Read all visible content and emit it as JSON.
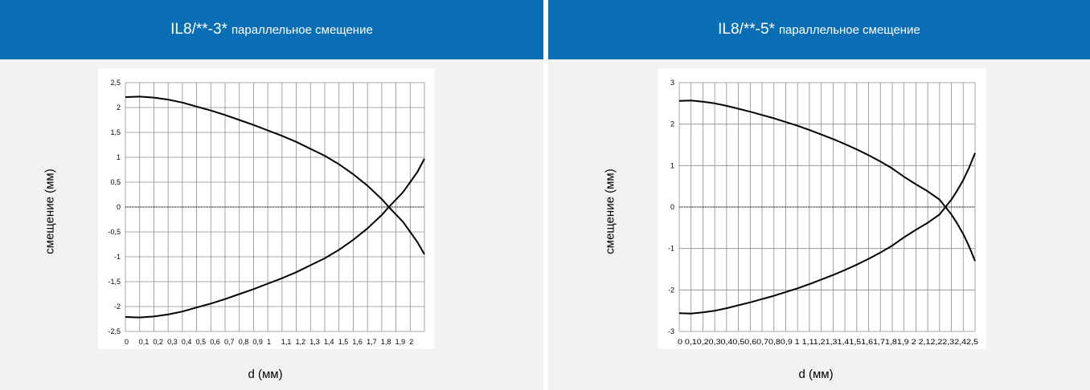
{
  "charts": [
    {
      "title_main": "IL8/**-3*",
      "title_sub": "параллельное смещение",
      "ylabel": "смещение (мм)",
      "xlabel": "d (мм)"
    },
    {
      "title_main": "IL8/**-5*",
      "title_sub": "параллельное смещение",
      "ylabel": "смещение (мм)",
      "xlabel": "d (мм)"
    }
  ],
  "chart_data": [
    {
      "type": "line",
      "title": "IL8/**-3* параллельное смещение",
      "xlabel": "d (мм)",
      "ylabel": "смещение (мм)",
      "xlim": [
        0,
        2.1
      ],
      "ylim": [
        -2.5,
        2.5
      ],
      "grid": true,
      "x_ticks": [
        "0",
        "0,1",
        "0,2",
        "0,3",
        "0,4",
        "0,5",
        "0,6",
        "0,7",
        "0,8",
        "0,9",
        "1",
        "1,1",
        "1,2",
        "1,3",
        "1,4",
        "1,5",
        "1,6",
        "1,7",
        "1,8",
        "1,9",
        "2"
      ],
      "y_ticks": [
        "2,5",
        "2",
        "1,5",
        "1",
        "0,5",
        "0",
        "-0,5",
        "-1",
        "-1,5",
        "-2",
        "-2,5"
      ],
      "y_tick_values": [
        2.5,
        2,
        1.5,
        1,
        0.5,
        0,
        -0.5,
        -1,
        -1.5,
        -2,
        -2.5
      ],
      "series": [
        {
          "x": [
            0,
            0.1,
            0.2,
            0.3,
            0.4,
            0.5,
            0.6,
            0.7,
            0.8,
            0.9,
            1.0,
            1.1,
            1.2,
            1.3,
            1.4,
            1.5,
            1.6,
            1.7,
            1.8,
            1.85,
            1.9,
            1.95,
            2.0,
            2.05,
            2.1
          ],
          "y": [
            2.21,
            2.22,
            2.2,
            2.16,
            2.1,
            2.02,
            1.94,
            1.85,
            1.75,
            1.65,
            1.54,
            1.43,
            1.31,
            1.17,
            1.03,
            0.86,
            0.66,
            0.43,
            0.16,
            0.0,
            -0.15,
            -0.3,
            -0.5,
            -0.7,
            -0.95
          ]
        },
        {
          "x": [
            0,
            0.1,
            0.2,
            0.3,
            0.4,
            0.5,
            0.6,
            0.7,
            0.8,
            0.9,
            1.0,
            1.1,
            1.2,
            1.3,
            1.4,
            1.5,
            1.6,
            1.7,
            1.8,
            1.85,
            1.9,
            1.95,
            2.0,
            2.05,
            2.1
          ],
          "y": [
            -2.21,
            -2.22,
            -2.2,
            -2.16,
            -2.1,
            -2.02,
            -1.94,
            -1.85,
            -1.75,
            -1.65,
            -1.54,
            -1.43,
            -1.31,
            -1.17,
            -1.03,
            -0.86,
            -0.66,
            -0.43,
            -0.16,
            0.0,
            0.15,
            0.3,
            0.5,
            0.7,
            0.97
          ]
        },
        {
          "x": [
            0,
            2.1
          ],
          "y": [
            0,
            0
          ],
          "dotted": true
        }
      ]
    },
    {
      "type": "line",
      "title": "IL8/**-5* параллельное смещение",
      "xlabel": "d (мм)",
      "ylabel": "смещение (мм)",
      "xlim": [
        0,
        2.5
      ],
      "ylim": [
        -3,
        3
      ],
      "grid": true,
      "x_ticks": [
        "0",
        "0,1",
        "0,2",
        "0,3",
        "0,4",
        "0,5",
        "0,6",
        "0,7",
        "0,8",
        "0,9",
        "1",
        "1,1",
        "1,2",
        "1,3",
        "1,4",
        "1,5",
        "1,6",
        "1,7",
        "1,8",
        "1,9",
        "2",
        "2,1",
        "2,2",
        "2,3",
        "2,4",
        "2,5"
      ],
      "x_tick_text": "0 0,10,20,30,40,50,60,70,80,9 1 1,11,21,31,41,51,61,71,81,9 2 2,12,22,32,42,5",
      "y_ticks": [
        "3",
        "2",
        "1",
        "0",
        "-1",
        "-2",
        "-3"
      ],
      "y_tick_values": [
        3,
        2,
        1,
        0,
        -1,
        -2,
        -3
      ],
      "series": [
        {
          "x": [
            0,
            0.1,
            0.2,
            0.3,
            0.4,
            0.5,
            0.6,
            0.7,
            0.8,
            0.9,
            1.0,
            1.1,
            1.2,
            1.3,
            1.4,
            1.5,
            1.6,
            1.7,
            1.8,
            1.9,
            2.0,
            2.1,
            2.2,
            2.25,
            2.3,
            2.35,
            2.4,
            2.45,
            2.5
          ],
          "y": [
            2.56,
            2.57,
            2.54,
            2.5,
            2.44,
            2.37,
            2.3,
            2.22,
            2.14,
            2.05,
            1.96,
            1.86,
            1.75,
            1.64,
            1.52,
            1.39,
            1.25,
            1.1,
            0.93,
            0.73,
            0.55,
            0.38,
            0.18,
            0.0,
            -0.18,
            -0.4,
            -0.65,
            -0.95,
            -1.3
          ]
        },
        {
          "x": [
            0,
            0.1,
            0.2,
            0.3,
            0.4,
            0.5,
            0.6,
            0.7,
            0.8,
            0.9,
            1.0,
            1.1,
            1.2,
            1.3,
            1.4,
            1.5,
            1.6,
            1.7,
            1.8,
            1.9,
            2.0,
            2.1,
            2.2,
            2.25,
            2.3,
            2.35,
            2.4,
            2.45,
            2.5
          ],
          "y": [
            -2.56,
            -2.57,
            -2.54,
            -2.5,
            -2.44,
            -2.37,
            -2.3,
            -2.22,
            -2.14,
            -2.05,
            -1.96,
            -1.86,
            -1.75,
            -1.64,
            -1.52,
            -1.39,
            -1.25,
            -1.1,
            -0.93,
            -0.73,
            -0.55,
            -0.38,
            -0.18,
            0.0,
            0.18,
            0.4,
            0.65,
            0.95,
            1.3
          ]
        },
        {
          "x": [
            0,
            2.5
          ],
          "y": [
            0,
            0
          ],
          "dotted": true
        }
      ]
    }
  ]
}
